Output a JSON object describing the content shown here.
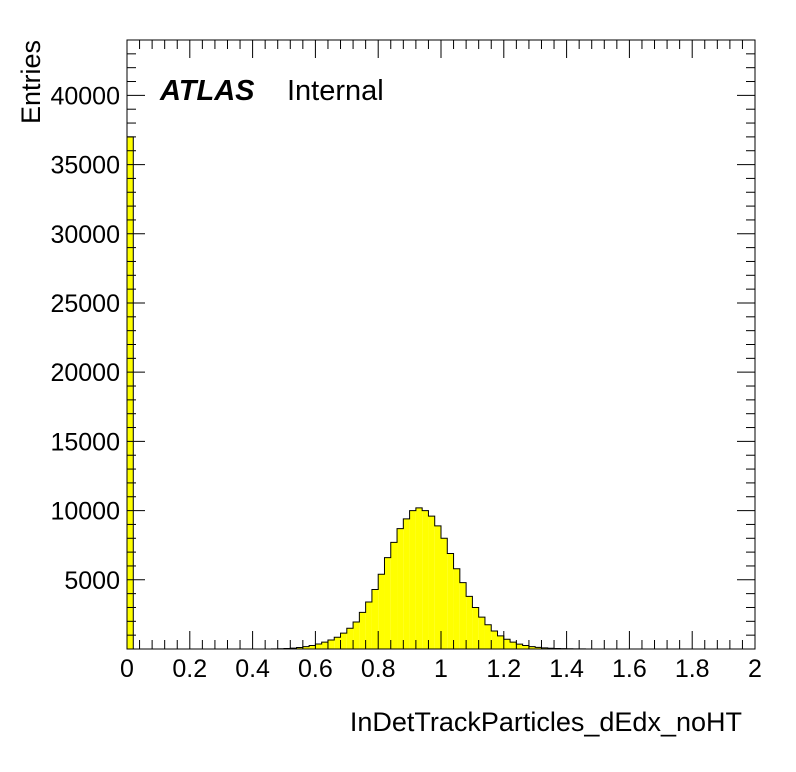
{
  "chart_data": {
    "type": "bar",
    "histogram": true,
    "xlabel": "InDetTrackParticles_dEdx_noHT",
    "ylabel": "Entries",
    "xlim": [
      0,
      2
    ],
    "ylim": [
      0,
      44000
    ],
    "bin_width": 0.02,
    "x_ticks": [
      0,
      0.2,
      0.4,
      0.6,
      0.8,
      1,
      1.2,
      1.4,
      1.6,
      1.8,
      2
    ],
    "x_tick_labels": [
      "0",
      "0.2",
      "0.4",
      "0.6",
      "0.8",
      "1",
      "1.2",
      "1.4",
      "1.6",
      "1.8",
      "2"
    ],
    "y_ticks": [
      5000,
      10000,
      15000,
      20000,
      25000,
      30000,
      35000,
      40000
    ],
    "y_tick_labels": [
      "5000",
      "10000",
      "15000",
      "20000",
      "25000",
      "30000",
      "35000",
      "40000"
    ],
    "fill_color": "#ffff00",
    "line_color": "#000000",
    "grid": false,
    "legend": "none",
    "annotations": [
      {
        "text": "ATLAS",
        "style": "bold-italic"
      },
      {
        "text": "Internal",
        "style": "normal"
      }
    ],
    "bin_edges_start": [
      0,
      0.02,
      0.04,
      0.06,
      0.08,
      0.1,
      0.12,
      0.14,
      0.16,
      0.18,
      0.2,
      0.22,
      0.24,
      0.26,
      0.28,
      0.3,
      0.32,
      0.34,
      0.36,
      0.38,
      0.4,
      0.42,
      0.44,
      0.46,
      0.48,
      0.5,
      0.52,
      0.54,
      0.56,
      0.58,
      0.6,
      0.62,
      0.64,
      0.66,
      0.68,
      0.7,
      0.72,
      0.74,
      0.76,
      0.78,
      0.8,
      0.82,
      0.84,
      0.86,
      0.88,
      0.9,
      0.92,
      0.94,
      0.96,
      0.98,
      1.0,
      1.02,
      1.04,
      1.06,
      1.08,
      1.1,
      1.12,
      1.14,
      1.16,
      1.18,
      1.2,
      1.22,
      1.24,
      1.26,
      1.28,
      1.3,
      1.32,
      1.34,
      1.36,
      1.38,
      1.4,
      1.42,
      1.44,
      1.46,
      1.48,
      1.5,
      1.52,
      1.54,
      1.56,
      1.58,
      1.6,
      1.62,
      1.64,
      1.66,
      1.68,
      1.7,
      1.72,
      1.74,
      1.76,
      1.78,
      1.8,
      1.82,
      1.84,
      1.86,
      1.88,
      1.9,
      1.92,
      1.94,
      1.96,
      1.98
    ],
    "values": [
      37000,
      0,
      0,
      0,
      0,
      0,
      0,
      0,
      0,
      0,
      0,
      0,
      0,
      0,
      0,
      0,
      0,
      0,
      0,
      0,
      0,
      0,
      0,
      10,
      20,
      40,
      60,
      110,
      170,
      250,
      360,
      500,
      650,
      850,
      1150,
      1500,
      1950,
      2650,
      3400,
      4300,
      5400,
      6600,
      7700,
      8700,
      9400,
      10000,
      10200,
      10000,
      9600,
      8900,
      8000,
      6900,
      5800,
      4800,
      3800,
      3000,
      2300,
      1750,
      1300,
      950,
      700,
      500,
      350,
      250,
      170,
      120,
      80,
      55,
      35,
      25,
      15,
      10,
      5,
      0,
      0,
      0,
      0,
      0,
      0,
      0,
      0,
      0,
      0,
      0,
      0,
      0,
      0,
      0,
      0,
      0,
      0,
      0,
      0,
      0,
      0,
      0,
      0,
      0,
      0,
      0
    ]
  }
}
